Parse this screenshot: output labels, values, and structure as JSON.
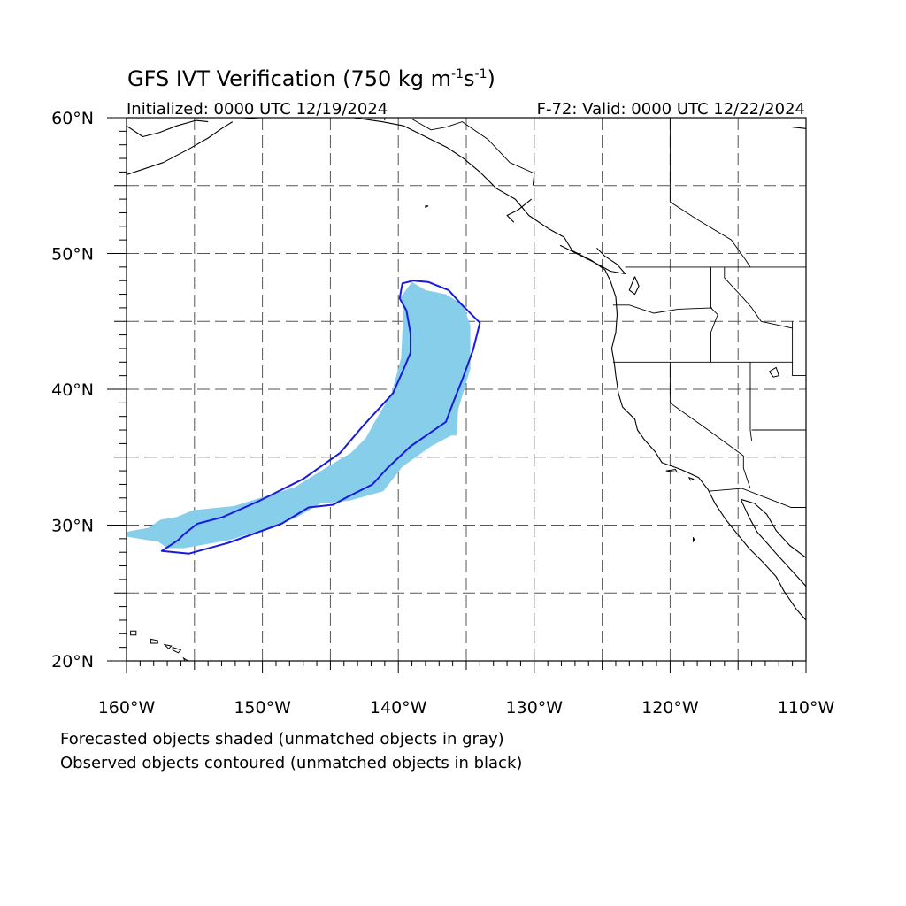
{
  "title": "GFS IVT Verification (750 kg m",
  "title_exp1": "-1",
  "title_mid": "s",
  "title_exp2": "-1",
  "title_end": ")",
  "initialized": "Initialized: 0000 UTC 12/19/2024",
  "valid": "F-72: Valid: 0000 UTC 12/22/2024",
  "captions": [
    "Forecasted objects shaded (unmatched objects in gray)",
    "Observed objects contoured (unmatched objects in black)"
  ],
  "map": {
    "projection": "cylindrical equidistant",
    "lon_range": [
      -160,
      -110
    ],
    "lat_range": [
      20,
      60
    ],
    "grid_lines": "dashed every 5 degrees",
    "x_tick_labels": [
      "160°W",
      "150°W",
      "140°W",
      "130°W",
      "120°W",
      "110°W"
    ],
    "y_tick_labels": [
      "60°N",
      "50°N",
      "40°N",
      "30°N",
      "20°N"
    ],
    "x_tick_values": [
      -160,
      -150,
      -140,
      -130,
      -120,
      -110
    ],
    "y_tick_values": [
      60,
      50,
      40,
      30,
      20
    ]
  },
  "colors": {
    "forecast_fill": "#87ceeb",
    "observed_contour": "#1a1adc",
    "coastline": "#000000",
    "grid": "#555555"
  },
  "forecast_object": [
    [
      -160.9,
      29.3
    ],
    [
      -159.5,
      29.6
    ],
    [
      -158.4,
      29.8
    ],
    [
      -157.5,
      30.4
    ],
    [
      -156.3,
      30.6
    ],
    [
      -155.1,
      31.1
    ],
    [
      -152.1,
      31.4
    ],
    [
      -147.6,
      32.8
    ],
    [
      -145.2,
      34.3
    ],
    [
      -143.5,
      35.3
    ],
    [
      -142.4,
      36.4
    ],
    [
      -141.8,
      37.5
    ],
    [
      -140.5,
      39.7
    ],
    [
      -139.8,
      42.3
    ],
    [
      -139.7,
      44.2
    ],
    [
      -139.6,
      46.0
    ],
    [
      -139.9,
      46.7
    ],
    [
      -139.0,
      47.9
    ],
    [
      -138.0,
      47.3
    ],
    [
      -136.5,
      47.0
    ],
    [
      -135.2,
      46.2
    ],
    [
      -134.7,
      44.7
    ],
    [
      -134.7,
      41.5
    ],
    [
      -135.6,
      38.5
    ],
    [
      -135.7,
      36.6
    ],
    [
      -136.1,
      36.6
    ],
    [
      -137.6,
      35.8
    ],
    [
      -139.7,
      34.3
    ],
    [
      -141.1,
      32.5
    ],
    [
      -143.6,
      31.8
    ],
    [
      -145.7,
      31.6
    ],
    [
      -147.6,
      30.5
    ],
    [
      -150.5,
      29.5
    ],
    [
      -152.4,
      28.9
    ],
    [
      -155.8,
      28.3
    ],
    [
      -157.0,
      28.3
    ],
    [
      -157.7,
      28.8
    ],
    [
      -158.5,
      28.9
    ]
  ],
  "observed_contour": [
    [
      -157.4,
      28.1
    ],
    [
      -155.4,
      27.9
    ],
    [
      -152.5,
      28.7
    ],
    [
      -148.6,
      30.1
    ],
    [
      -146.6,
      31.3
    ],
    [
      -144.8,
      31.5
    ],
    [
      -143.7,
      32.1
    ],
    [
      -141.9,
      33.0
    ],
    [
      -140.8,
      34.2
    ],
    [
      -139.1,
      35.8
    ],
    [
      -137.8,
      36.7
    ],
    [
      -136.5,
      37.6
    ],
    [
      -135.9,
      39.2
    ],
    [
      -135.3,
      40.7
    ],
    [
      -134.5,
      42.9
    ],
    [
      -134.0,
      44.9
    ],
    [
      -135.4,
      46.3
    ],
    [
      -136.3,
      47.3
    ],
    [
      -137.8,
      47.9
    ],
    [
      -138.9,
      48.0
    ],
    [
      -139.7,
      47.8
    ],
    [
      -139.9,
      46.7
    ],
    [
      -139.4,
      45.8
    ],
    [
      -139.1,
      44.1
    ],
    [
      -139.1,
      42.7
    ],
    [
      -139.6,
      41.5
    ],
    [
      -140.4,
      39.7
    ],
    [
      -142.6,
      37.3
    ],
    [
      -144.3,
      35.3
    ],
    [
      -147.0,
      33.4
    ],
    [
      -150.2,
      31.8
    ],
    [
      -152.9,
      30.6
    ],
    [
      -154.8,
      30.1
    ],
    [
      -155.8,
      29.3
    ],
    [
      -156.2,
      28.9
    ]
  ],
  "coastlines": [
    [
      [
        -160.0,
        55.8
      ],
      [
        -157.3,
        56.7
      ],
      [
        -155.4,
        57.7
      ],
      [
        -154.0,
        58.5
      ],
      [
        -153.0,
        59.2
      ],
      [
        -152.2,
        59.7
      ]
    ],
    [
      [
        -160.0,
        59.4
      ],
      [
        -158.8,
        58.6
      ],
      [
        -157.6,
        58.9
      ],
      [
        -156.3,
        59.4
      ],
      [
        -154.9,
        59.8
      ],
      [
        -154.0,
        59.7
      ]
    ],
    [
      [
        -151.5,
        59.9
      ],
      [
        -150.2,
        60.0
      ]
    ],
    [
      [
        -143.3,
        60.0
      ],
      [
        -141.2,
        59.7
      ],
      [
        -139.6,
        59.4
      ],
      [
        -137.6,
        58.4
      ],
      [
        -136.4,
        57.8
      ],
      [
        -135.2,
        57.0
      ],
      [
        -134.0,
        56.0
      ],
      [
        -132.8,
        54.8
      ],
      [
        -131.4,
        54.0
      ],
      [
        -130.4,
        52.8
      ],
      [
        -128.9,
        51.8
      ],
      [
        -127.8,
        51.2
      ],
      [
        -127.2,
        50.2
      ],
      [
        -125.8,
        49.5
      ],
      [
        -124.8,
        48.8
      ],
      [
        -124.4,
        48.0
      ],
      [
        -124.0,
        46.8
      ],
      [
        -123.9,
        45.5
      ],
      [
        -124.0,
        44.2
      ],
      [
        -124.3,
        43.0
      ],
      [
        -124.1,
        41.9
      ],
      [
        -124.0,
        41.0
      ],
      [
        -123.8,
        39.7
      ],
      [
        -123.5,
        38.7
      ],
      [
        -122.6,
        37.8
      ],
      [
        -122.4,
        37.0
      ],
      [
        -121.9,
        36.3
      ],
      [
        -121.1,
        35.4
      ],
      [
        -120.6,
        34.6
      ],
      [
        -119.2,
        34.1
      ],
      [
        -117.9,
        33.5
      ],
      [
        -117.2,
        32.6
      ],
      [
        -116.7,
        31.6
      ],
      [
        -115.9,
        30.4
      ],
      [
        -115.1,
        29.4
      ],
      [
        -114.2,
        28.3
      ],
      [
        -113.2,
        27.3
      ],
      [
        -112.2,
        26.2
      ],
      [
        -111.6,
        25.1
      ],
      [
        -110.7,
        23.8
      ],
      [
        -110.0,
        23.0
      ]
    ],
    [
      [
        -114.8,
        31.9
      ],
      [
        -114.2,
        30.6
      ],
      [
        -113.6,
        29.5
      ],
      [
        -112.8,
        28.6
      ],
      [
        -112.1,
        27.8
      ],
      [
        -111.0,
        26.6
      ],
      [
        -110.0,
        25.5
      ]
    ],
    [
      [
        -110.0,
        27.6
      ],
      [
        -111.2,
        28.5
      ],
      [
        -112.2,
        29.6
      ],
      [
        -112.9,
        30.8
      ],
      [
        -113.8,
        31.6
      ],
      [
        -114.8,
        31.9
      ]
    ],
    [
      [
        -130.2,
        54.0
      ],
      [
        -131.2,
        53.2
      ],
      [
        -132.0,
        52.8
      ],
      [
        -131.5,
        52.3
      ]
    ],
    [
      [
        -125.4,
        50.4
      ],
      [
        -124.8,
        49.8
      ],
      [
        -123.9,
        49.2
      ],
      [
        -123.3,
        48.5
      ],
      [
        -124.4,
        48.7
      ],
      [
        -125.5,
        49.3
      ],
      [
        -127.3,
        50.2
      ],
      [
        -128.1,
        50.6
      ]
    ],
    [
      [
        -122.6,
        48.3
      ],
      [
        -122.3,
        47.6
      ],
      [
        -122.6,
        47.0
      ],
      [
        -123.0,
        47.3
      ],
      [
        -122.6,
        48.3
      ]
    ],
    [
      [
        -110.0,
        59.2
      ],
      [
        -111.0,
        59.3
      ]
    ]
  ],
  "borders": [
    [
      [
        -141.0,
        60.0
      ],
      [
        -141.0,
        59.8
      ]
    ],
    [
      [
        -139.0,
        59.9
      ],
      [
        -137.6,
        59.1
      ],
      [
        -136.5,
        59.3
      ],
      [
        -135.3,
        59.7
      ],
      [
        -133.4,
        58.4
      ],
      [
        -131.8,
        56.7
      ],
      [
        -130.0,
        55.9
      ],
      [
        -130.1,
        55.0
      ]
    ],
    [
      [
        -123.3,
        49.0
      ],
      [
        -110.0,
        49.0
      ]
    ],
    [
      [
        -120.0,
        60.0
      ],
      [
        -120.0,
        53.8
      ],
      [
        -118.0,
        52.5
      ],
      [
        -115.5,
        51.0
      ],
      [
        -114.5,
        49.6
      ],
      [
        -114.1,
        49.0
      ]
    ],
    [
      [
        -124.2,
        46.2
      ],
      [
        -123.0,
        46.2
      ],
      [
        -121.2,
        45.6
      ],
      [
        -119.4,
        45.9
      ],
      [
        -116.9,
        46.0
      ]
    ],
    [
      [
        -117.0,
        49.0
      ],
      [
        -117.0,
        46.0
      ],
      [
        -116.5,
        45.5
      ],
      [
        -117.0,
        44.2
      ],
      [
        -117.0,
        42.0
      ]
    ],
    [
      [
        -116.0,
        49.0
      ],
      [
        -116.0,
        48.2
      ],
      [
        -114.6,
        46.7
      ],
      [
        -114.0,
        46.0
      ],
      [
        -113.3,
        45.0
      ],
      [
        -111.0,
        44.5
      ]
    ],
    [
      [
        -124.2,
        42.0
      ],
      [
        -111.0,
        42.0
      ]
    ],
    [
      [
        -120.0,
        42.0
      ],
      [
        -120.0,
        39.0
      ],
      [
        -117.2,
        37.0
      ],
      [
        -114.6,
        35.1
      ],
      [
        -114.6,
        34.2
      ],
      [
        -114.1,
        32.7
      ]
    ],
    [
      [
        -114.1,
        42.0
      ],
      [
        -114.1,
        37.0
      ],
      [
        -114.0,
        36.2
      ]
    ],
    [
      [
        -114.0,
        37.0
      ],
      [
        -110.0,
        37.0
      ]
    ],
    [
      [
        -111.0,
        45.0
      ],
      [
        -111.0,
        41.0
      ],
      [
        -110.0,
        41.0
      ]
    ],
    [
      [
        -117.1,
        32.5
      ],
      [
        -114.7,
        32.7
      ],
      [
        -111.1,
        31.3
      ],
      [
        -110.0,
        31.3
      ]
    ]
  ],
  "islands": [
    [
      [
        -159.7,
        22.2
      ],
      [
        -159.3,
        22.2
      ],
      [
        -159.3,
        21.9
      ],
      [
        -159.7,
        21.9
      ],
      [
        -159.7,
        22.2
      ]
    ],
    [
      [
        -158.2,
        21.6
      ],
      [
        -157.7,
        21.5
      ],
      [
        -157.7,
        21.3
      ],
      [
        -158.2,
        21.3
      ],
      [
        -158.2,
        21.6
      ]
    ],
    [
      [
        -157.2,
        21.2
      ],
      [
        -156.7,
        21.1
      ],
      [
        -156.9,
        20.9
      ],
      [
        -157.2,
        21.2
      ]
    ],
    [
      [
        -156.6,
        21.0
      ],
      [
        -156.0,
        20.8
      ],
      [
        -156.2,
        20.6
      ],
      [
        -156.6,
        20.8
      ],
      [
        -156.6,
        21.0
      ]
    ],
    [
      [
        -155.8,
        20.2
      ],
      [
        -155.0,
        19.7
      ],
      [
        -155.5,
        19.5
      ],
      [
        -155.8,
        20.2
      ]
    ],
    [
      [
        -120.3,
        34.0
      ],
      [
        -119.6,
        34.1
      ],
      [
        -119.5,
        33.9
      ],
      [
        -120.3,
        34.0
      ]
    ],
    [
      [
        -118.6,
        33.5
      ],
      [
        -118.3,
        33.4
      ],
      [
        -118.5,
        33.3
      ],
      [
        -118.6,
        33.5
      ]
    ],
    [
      [
        -118.3,
        29.1
      ],
      [
        -118.2,
        28.9
      ],
      [
        -118.3,
        28.8
      ],
      [
        -118.3,
        29.1
      ]
    ],
    [
      [
        -112.7,
        41.3
      ],
      [
        -112.2,
        41.6
      ],
      [
        -112.0,
        41.0
      ],
      [
        -112.4,
        40.9
      ],
      [
        -112.7,
        41.3
      ]
    ],
    [
      [
        -137.8,
        53.5
      ],
      [
        -138.0,
        53.5
      ],
      [
        -138.0,
        53.4
      ],
      [
        -137.8,
        53.5
      ]
    ]
  ]
}
